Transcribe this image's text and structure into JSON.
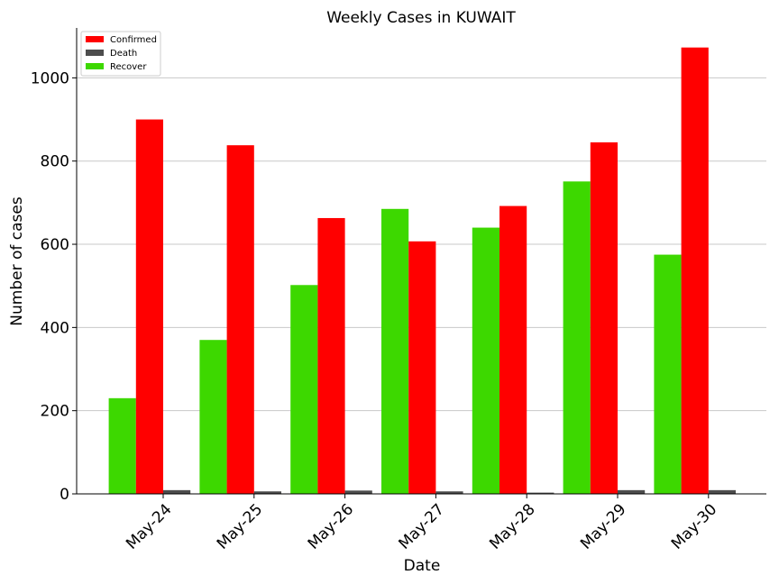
{
  "chart_data": {
    "type": "bar",
    "title": "Weekly Cases in KUWAIT",
    "xlabel": "Date",
    "ylabel": "Number of cases",
    "categories": [
      "May-24",
      "May-25",
      "May-26",
      "May-27",
      "May-28",
      "May-29",
      "May-30"
    ],
    "series": [
      {
        "name": "Recover",
        "color": "#3dd800",
        "values": [
          230,
          370,
          502,
          685,
          640,
          751,
          575
        ]
      },
      {
        "name": "Confirmed",
        "color": "#ff0000",
        "values": [
          900,
          838,
          663,
          607,
          692,
          845,
          1073
        ]
      },
      {
        "name": "Death",
        "color": "#4d4d4d",
        "values": [
          9,
          6,
          8,
          6,
          3,
          9,
          9
        ]
      }
    ],
    "legend_order": [
      "Confirmed",
      "Death",
      "Recover"
    ],
    "legend_position": "top-left",
    "ylim": [
      0,
      1120
    ],
    "yticks": [
      0,
      200,
      400,
      600,
      800,
      1000
    ],
    "grid": "horizontal",
    "xtick_rotation": 45
  }
}
